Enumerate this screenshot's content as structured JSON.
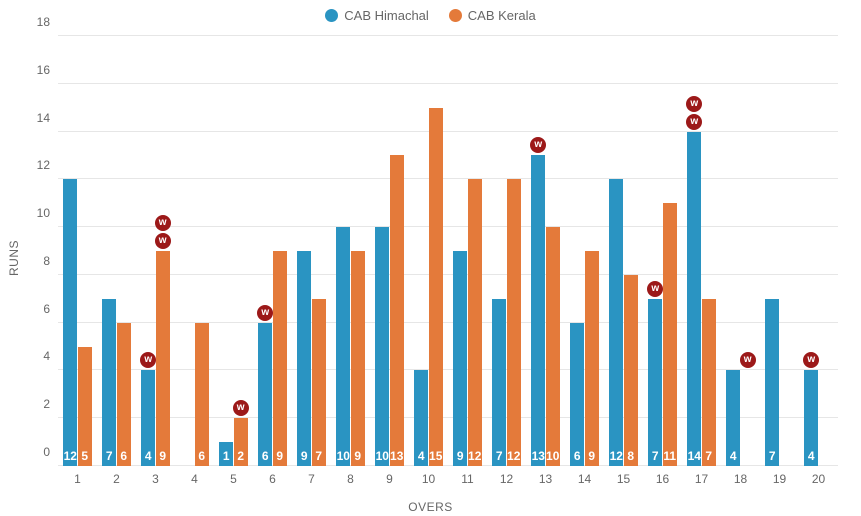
{
  "chart": {
    "type": "bar",
    "background_color": "#ffffff",
    "grid_color": "#e6e6e6",
    "tick_color": "#666666",
    "title": "",
    "xlabel": "OVERS",
    "ylabel": "RUNS",
    "label_fontsize": 12,
    "ylim": [
      0,
      18
    ],
    "ytick_step": 2,
    "categories": [
      1,
      2,
      3,
      4,
      5,
      6,
      7,
      8,
      9,
      10,
      11,
      12,
      13,
      14,
      15,
      16,
      17,
      18,
      19,
      20
    ],
    "bar_group_width": 0.72,
    "bar_gap": 0.02,
    "wicket_symbol": "w",
    "wicket_badge_color": "#9c1919",
    "wicket_badge_text_color": "#ffffff",
    "legend_position": "top-center",
    "series": [
      {
        "name": "CAB Himachal",
        "color": "#2a94c2",
        "values": [
          12,
          7,
          4,
          0,
          1,
          6,
          9,
          10,
          10,
          4,
          9,
          7,
          13,
          6,
          12,
          7,
          14,
          4,
          7,
          4
        ],
        "wickets": [
          0,
          0,
          1,
          0,
          0,
          1,
          0,
          0,
          0,
          0,
          0,
          0,
          1,
          0,
          0,
          1,
          2,
          0,
          0,
          1
        ]
      },
      {
        "name": "CAB Kerala",
        "color": "#e47a3a",
        "values": [
          5,
          6,
          9,
          6,
          2,
          9,
          7,
          9,
          13,
          15,
          12,
          12,
          10,
          9,
          8,
          11,
          7,
          null,
          null,
          null
        ],
        "wickets": [
          0,
          0,
          2,
          0,
          1,
          0,
          0,
          0,
          0,
          0,
          0,
          0,
          0,
          0,
          0,
          0,
          0,
          1,
          0,
          0
        ]
      }
    ]
  }
}
